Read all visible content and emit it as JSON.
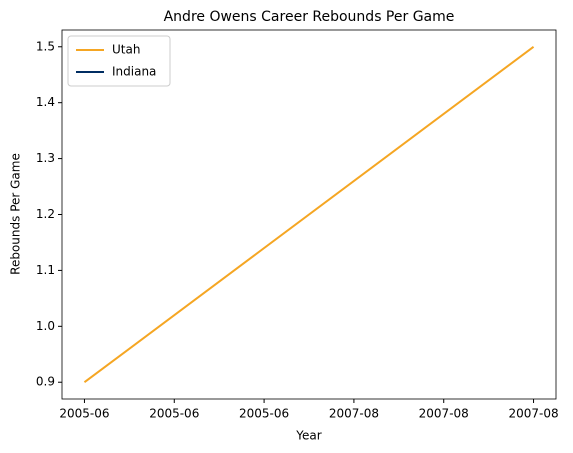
{
  "chart_data": {
    "type": "line",
    "title": "Andre Owens Career Rebounds Per Game",
    "xlabel": "Year",
    "ylabel": "Rebounds Per Game",
    "x": [
      0,
      1
    ],
    "series": [
      {
        "name": "Utah",
        "color": "#f5a623",
        "values": [
          0.9,
          1.5
        ]
      },
      {
        "name": "Indiana",
        "color": "#002d62",
        "values": [
          null,
          null
        ]
      }
    ],
    "xlim": [
      -0.05,
      1.05
    ],
    "xticks": [
      {
        "value": 0,
        "label": "2005-06"
      },
      {
        "value": 0.2,
        "label": "2005-06"
      },
      {
        "value": 0.4,
        "label": "2005-06"
      },
      {
        "value": 0.6,
        "label": "2007-08"
      },
      {
        "value": 0.8,
        "label": "2007-08"
      },
      {
        "value": 1,
        "label": "2007-08"
      }
    ],
    "ylim": [
      0.87,
      1.53
    ],
    "yticks": [
      0.9,
      {
        "value": 1.0,
        "label": "1.0"
      },
      1.1,
      1.2,
      1.3,
      1.4,
      1.5
    ],
    "legend": "upper left",
    "grid": false
  }
}
